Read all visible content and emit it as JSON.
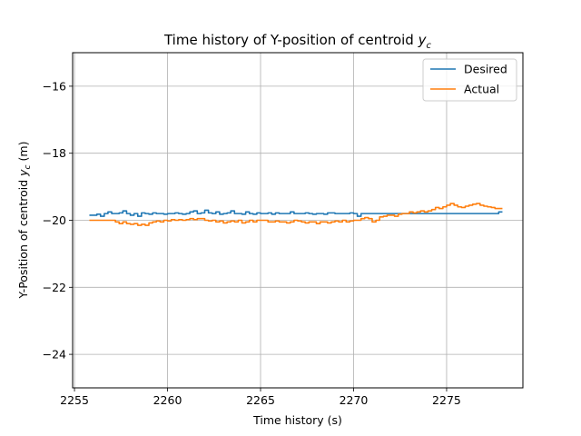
{
  "chart_data": {
    "type": "line",
    "title": "Time history of Y-position of centroid",
    "title_math": "y",
    "title_math_sub": "c",
    "xlabel": "Time history (s)",
    "ylabel": "Y-Position of centroid",
    "ylabel_math": "y",
    "ylabel_math_sub": "c",
    "ylabel_unit": "(m)",
    "xlim": [
      2254.9,
      2279.1
    ],
    "ylim": [
      -25,
      -15
    ],
    "xticks": [
      2255,
      2260,
      2265,
      2270,
      2275
    ],
    "yticks": [
      -16,
      -18,
      -20,
      -22,
      -24
    ],
    "ytick_labels": [
      "−16",
      "−18",
      "−20",
      "−22",
      "−24"
    ],
    "grid": true,
    "legend_position": "top-right",
    "series": [
      {
        "name": "Desired",
        "color": "#1f77b4",
        "x": [
          2255.8,
          2256.2,
          2256.4,
          2256.6,
          2256.8,
          2257.0,
          2257.2,
          2257.4,
          2257.6,
          2257.8,
          2258.0,
          2258.2,
          2258.4,
          2258.6,
          2258.8,
          2259.0,
          2259.2,
          2259.4,
          2259.6,
          2259.8,
          2260.0,
          2260.2,
          2260.4,
          2260.6,
          2260.8,
          2261.0,
          2261.2,
          2261.4,
          2261.6,
          2261.8,
          2262.0,
          2262.2,
          2262.4,
          2262.6,
          2262.8,
          2263.0,
          2263.2,
          2263.4,
          2263.6,
          2263.8,
          2264.0,
          2264.2,
          2264.4,
          2264.6,
          2264.8,
          2265.0,
          2265.2,
          2265.4,
          2265.6,
          2265.8,
          2266.0,
          2266.2,
          2266.4,
          2266.6,
          2266.8,
          2267.0,
          2267.2,
          2267.4,
          2267.6,
          2267.8,
          2268.0,
          2268.2,
          2268.4,
          2268.6,
          2268.8,
          2269.0,
          2269.2,
          2269.4,
          2269.6,
          2269.8,
          2270.0,
          2270.2,
          2270.4,
          2270.6,
          2270.8,
          2271.0,
          2271.5,
          2272.0,
          2272.5,
          2273.0,
          2273.5,
          2274.0,
          2274.5,
          2275.0,
          2275.5,
          2276.0,
          2276.5,
          2277.0,
          2277.5,
          2277.8,
          2278.0
        ],
        "y": [
          -19.85,
          -19.82,
          -19.88,
          -19.8,
          -19.75,
          -19.8,
          -19.8,
          -19.78,
          -19.72,
          -19.8,
          -19.85,
          -19.8,
          -19.88,
          -19.78,
          -19.8,
          -19.82,
          -19.78,
          -19.8,
          -19.8,
          -19.82,
          -19.8,
          -19.8,
          -19.78,
          -19.8,
          -19.82,
          -19.8,
          -19.75,
          -19.72,
          -19.8,
          -19.78,
          -19.7,
          -19.78,
          -19.8,
          -19.75,
          -19.82,
          -19.8,
          -19.78,
          -19.72,
          -19.8,
          -19.8,
          -19.82,
          -19.75,
          -19.8,
          -19.82,
          -19.78,
          -19.8,
          -19.8,
          -19.78,
          -19.82,
          -19.78,
          -19.8,
          -19.8,
          -19.8,
          -19.75,
          -19.8,
          -19.8,
          -19.8,
          -19.78,
          -19.8,
          -19.82,
          -19.8,
          -19.8,
          -19.82,
          -19.78,
          -19.78,
          -19.8,
          -19.8,
          -19.8,
          -19.8,
          -19.78,
          -19.8,
          -19.88,
          -19.8,
          -19.8,
          -19.8,
          -19.8,
          -19.8,
          -19.8,
          -19.8,
          -19.8,
          -19.8,
          -19.8,
          -19.8,
          -19.8,
          -19.8,
          -19.8,
          -19.8,
          -19.8,
          -19.8,
          -19.75,
          -19.75
        ]
      },
      {
        "name": "Actual",
        "color": "#ff7f0e",
        "x": [
          2255.8,
          2256.2,
          2256.6,
          2257.0,
          2257.2,
          2257.4,
          2257.6,
          2257.8,
          2258.0,
          2258.2,
          2258.4,
          2258.6,
          2258.8,
          2259.0,
          2259.2,
          2259.4,
          2259.6,
          2259.8,
          2260.0,
          2260.2,
          2260.4,
          2260.6,
          2260.8,
          2261.0,
          2261.2,
          2261.4,
          2261.6,
          2261.8,
          2262.0,
          2262.2,
          2262.4,
          2262.6,
          2262.8,
          2263.0,
          2263.2,
          2263.4,
          2263.6,
          2263.8,
          2264.0,
          2264.2,
          2264.4,
          2264.6,
          2264.8,
          2265.0,
          2265.2,
          2265.4,
          2265.6,
          2265.8,
          2266.0,
          2266.2,
          2266.4,
          2266.6,
          2266.8,
          2267.0,
          2267.2,
          2267.4,
          2267.6,
          2267.8,
          2268.0,
          2268.2,
          2268.4,
          2268.6,
          2268.8,
          2269.0,
          2269.2,
          2269.4,
          2269.6,
          2269.8,
          2270.0,
          2270.2,
          2270.4,
          2270.6,
          2270.8,
          2271.0,
          2271.2,
          2271.4,
          2271.6,
          2271.8,
          2272.0,
          2272.2,
          2272.4,
          2272.6,
          2272.8,
          2273.0,
          2273.2,
          2273.4,
          2273.6,
          2273.8,
          2274.0,
          2274.2,
          2274.4,
          2274.6,
          2274.8,
          2275.0,
          2275.2,
          2275.4,
          2275.6,
          2275.8,
          2276.0,
          2276.2,
          2276.4,
          2276.6,
          2276.8,
          2277.0,
          2277.2,
          2277.4,
          2277.6,
          2277.8,
          2278.0
        ],
        "y": [
          -20.0,
          -20.0,
          -20.0,
          -20.0,
          -20.05,
          -20.1,
          -20.05,
          -20.1,
          -20.12,
          -20.1,
          -20.15,
          -20.12,
          -20.15,
          -20.08,
          -20.05,
          -20.02,
          -20.05,
          -20.0,
          -20.02,
          -19.98,
          -20.0,
          -19.98,
          -20.0,
          -19.98,
          -19.95,
          -19.98,
          -19.95,
          -19.95,
          -20.0,
          -20.02,
          -20.0,
          -20.05,
          -20.02,
          -20.08,
          -20.05,
          -20.02,
          -20.05,
          -20.0,
          -20.08,
          -20.05,
          -20.0,
          -20.05,
          -20.0,
          -20.0,
          -20.0,
          -20.05,
          -20.05,
          -20.02,
          -20.05,
          -20.05,
          -20.08,
          -20.05,
          -20.0,
          -20.02,
          -20.05,
          -20.08,
          -20.05,
          -20.05,
          -20.1,
          -20.05,
          -20.05,
          -20.08,
          -20.05,
          -20.02,
          -20.05,
          -20.0,
          -20.05,
          -20.02,
          -20.0,
          -20.0,
          -19.95,
          -19.92,
          -19.95,
          -20.05,
          -20.0,
          -19.9,
          -19.88,
          -19.85,
          -19.85,
          -19.88,
          -19.82,
          -19.8,
          -19.8,
          -19.75,
          -19.78,
          -19.75,
          -19.72,
          -19.75,
          -19.72,
          -19.68,
          -19.62,
          -19.65,
          -19.6,
          -19.55,
          -19.5,
          -19.55,
          -19.6,
          -19.62,
          -19.58,
          -19.55,
          -19.52,
          -19.5,
          -19.55,
          -19.58,
          -19.6,
          -19.62,
          -19.65,
          -19.65,
          -19.65
        ]
      }
    ]
  }
}
